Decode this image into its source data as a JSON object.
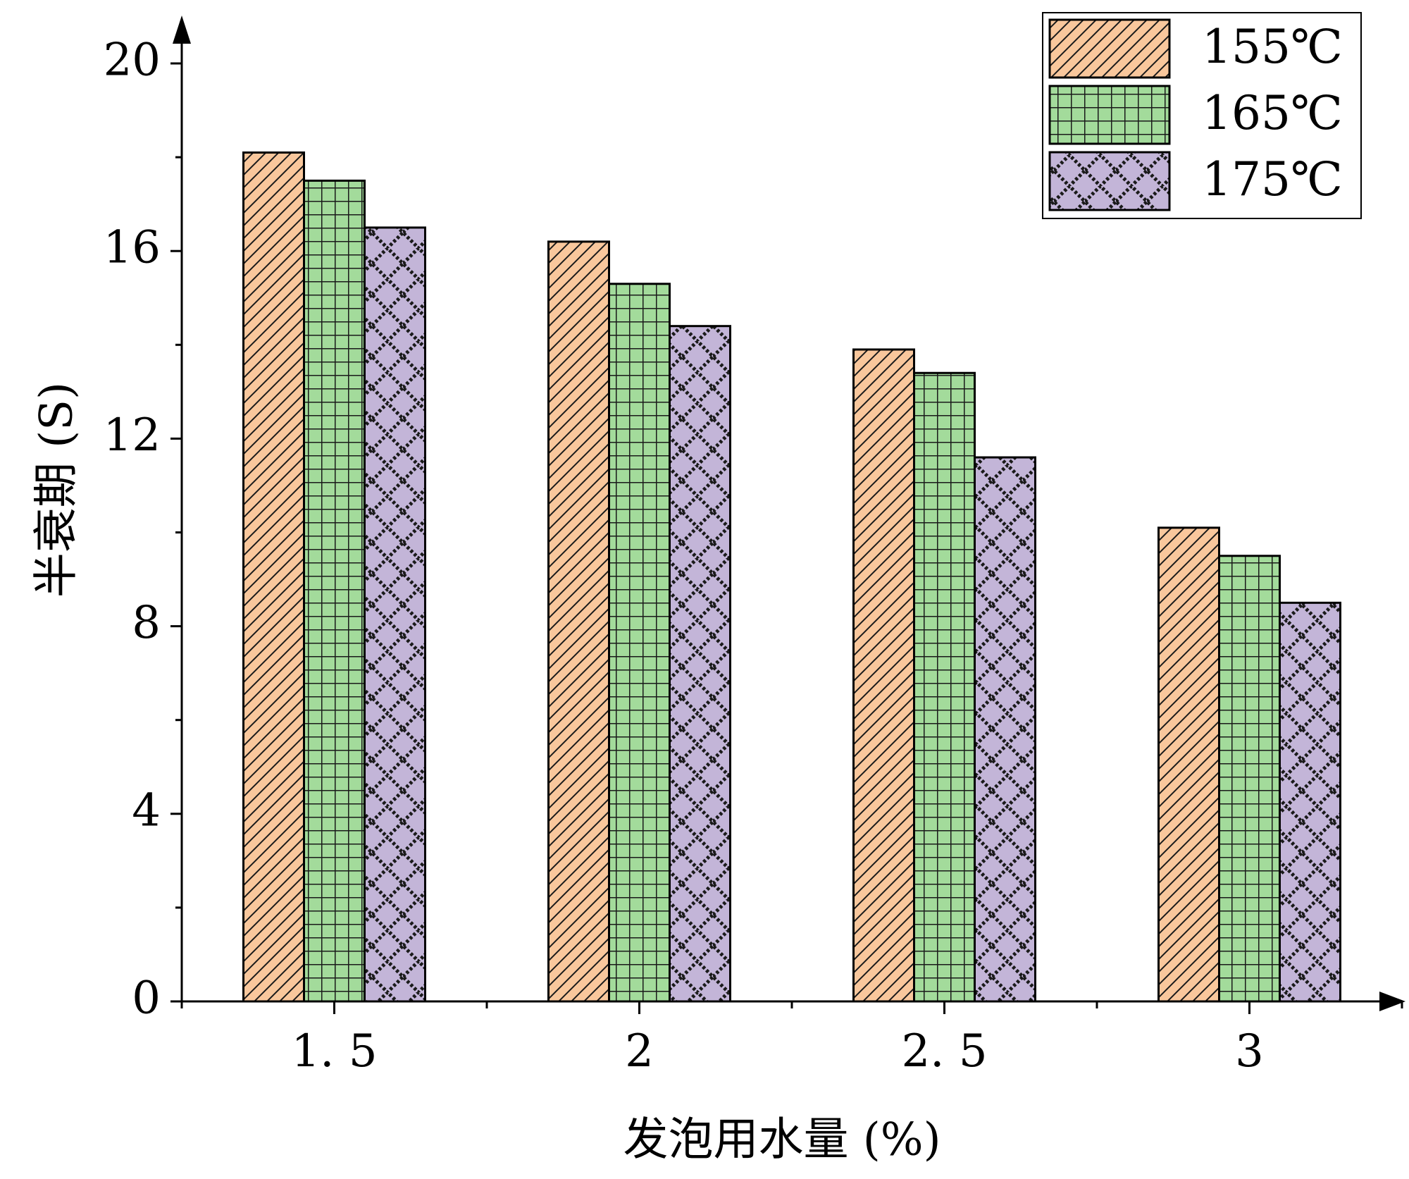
{
  "chart_data": {
    "type": "bar",
    "categories": [
      "1.5",
      "2",
      "2.5",
      "3"
    ],
    "category_labels": [
      "1. 5",
      "2",
      "2. 5",
      "3"
    ],
    "series": [
      {
        "name": "155℃",
        "values": [
          18.1,
          16.2,
          13.9,
          10.1
        ],
        "color": "#f9c79c",
        "pattern": "diagonal-hatch"
      },
      {
        "name": "165℃",
        "values": [
          17.5,
          15.3,
          13.4,
          9.5
        ],
        "color": "#a3db9b",
        "pattern": "grid"
      },
      {
        "name": "175℃",
        "values": [
          16.5,
          14.4,
          11.6,
          8.5
        ],
        "color": "#c3b5d8",
        "pattern": "diamond-lattice"
      }
    ],
    "xlabel": "发泡用水量 (%)",
    "ylabel": "半衰期 (S)",
    "ylim": [
      0,
      20
    ],
    "yticks": [
      0,
      4,
      8,
      12,
      16,
      20
    ],
    "ytick_labels": [
      "0",
      "4",
      "8",
      "12",
      "16",
      "20"
    ],
    "grid": false,
    "legend_position": "top-right"
  }
}
